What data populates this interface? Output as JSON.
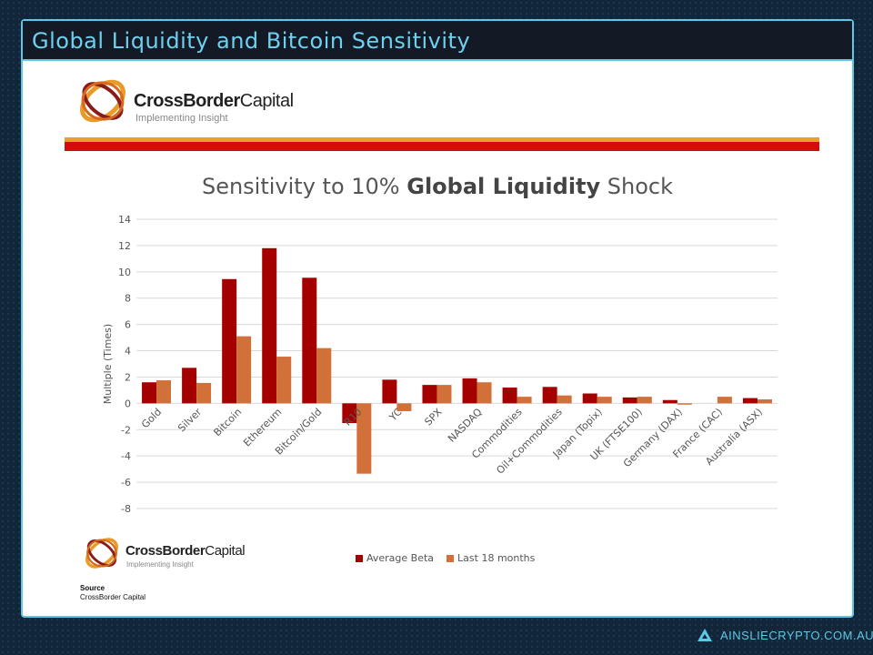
{
  "header": {
    "title": "Global Liquidity and Bitcoin Sensitivity"
  },
  "brand": {
    "name_bold": "CrossBorder",
    "name_light": "Capital",
    "tagline": "Implementing Insight"
  },
  "source": {
    "label": "Source",
    "value": "CrossBorder Capital"
  },
  "footer": {
    "site": "AINSLIECRYPTO.COM.AU",
    "icon": "ainslie-logo-icon"
  },
  "colors": {
    "accent": "#5ec8e6",
    "average_beta": "#a50000",
    "last_18_months": "#d2703a"
  },
  "chart_data": {
    "type": "bar",
    "title_prefix": "Sensitivity to 10% ",
    "title_bold": "Global Liquidity",
    "title_suffix": " Shock",
    "ylabel": "Multiple (Times)",
    "xlabel": "",
    "ylim": [
      -8,
      14
    ],
    "yticks": [
      14,
      12,
      10,
      8,
      6,
      4,
      2,
      0,
      -2,
      -4,
      -6,
      -8
    ],
    "grid": true,
    "legend_placement": "bottom",
    "categories": [
      "Gold",
      "Silver",
      "Bitcoin",
      "Ethereum",
      "Bitcoin/Gold",
      "R10",
      "YC",
      "SPX",
      "NASDAQ",
      "Commodities",
      "Oil+Commodities",
      "Japan (Topix)",
      "UK (FTSE100)",
      "Germany (DAX)",
      "France (CAC)",
      "Australia (ASX)"
    ],
    "series": [
      {
        "name": "Average Beta",
        "values": [
          1.6,
          2.7,
          9.45,
          11.8,
          9.55,
          -1.5,
          1.8,
          1.4,
          1.9,
          1.2,
          1.25,
          0.75,
          0.45,
          0.25,
          0,
          0.4
        ]
      },
      {
        "name": "Last 18 months",
        "values": [
          1.75,
          1.55,
          5.1,
          3.55,
          4.2,
          -5.35,
          -0.6,
          1.4,
          1.6,
          0.5,
          0.6,
          0.5,
          0.5,
          -0.1,
          0.5,
          0.3
        ]
      }
    ]
  }
}
